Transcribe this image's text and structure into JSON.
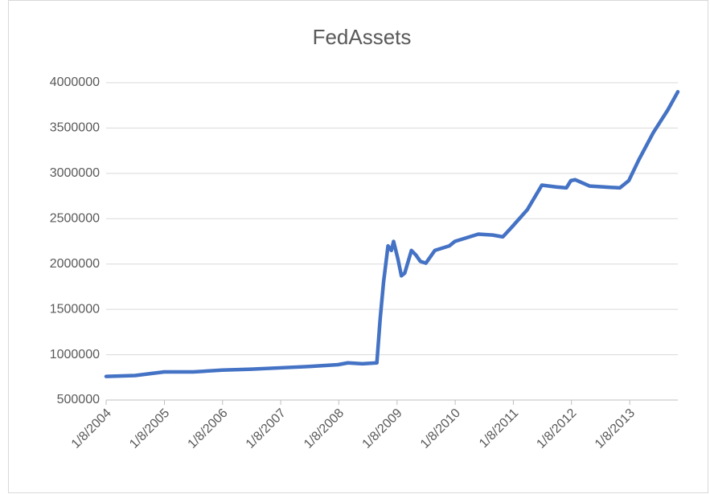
{
  "chart_data": {
    "type": "line",
    "title": "FedAssets",
    "series": [
      {
        "name": "FedAssets",
        "color": "#4472c4",
        "x": [
          "2004-01-08",
          "2004-07-08",
          "2005-01-06",
          "2005-07-07",
          "2006-01-05",
          "2006-07-06",
          "2007-01-04",
          "2007-07-05",
          "2008-01-03",
          "2008-03-05",
          "2008-06-04",
          "2008-09-03",
          "2008-09-24",
          "2008-10-15",
          "2008-11-12",
          "2008-12-03",
          "2008-12-17",
          "2009-01-14",
          "2009-02-04",
          "2009-02-25",
          "2009-04-08",
          "2009-05-06",
          "2009-06-03",
          "2009-07-08",
          "2009-09-02",
          "2009-12-02",
          "2010-01-06",
          "2010-06-02",
          "2010-09-01",
          "2010-11-03",
          "2011-01-05",
          "2011-04-06",
          "2011-07-06",
          "2011-10-05",
          "2011-12-07",
          "2012-01-04",
          "2012-02-01",
          "2012-05-02",
          "2012-08-01",
          "2012-11-07",
          "2013-01-02",
          "2013-03-06",
          "2013-06-05",
          "2013-09-04",
          "2013-11-06"
        ],
        "values": [
          760000,
          770000,
          810000,
          810000,
          830000,
          840000,
          855000,
          870000,
          890000,
          910000,
          900000,
          910000,
          1400000,
          1800000,
          2200000,
          2150000,
          2250000,
          2050000,
          1870000,
          1900000,
          2150000,
          2100000,
          2030000,
          2010000,
          2150000,
          2200000,
          2250000,
          2330000,
          2320000,
          2300000,
          2420000,
          2600000,
          2870000,
          2850000,
          2840000,
          2920000,
          2930000,
          2860000,
          2850000,
          2840000,
          2920000,
          3150000,
          3450000,
          3700000,
          3900000
        ]
      }
    ],
    "xlim": [
      "2004-01-08",
      "2013-11-06"
    ],
    "xticks": [
      {
        "value": "2004-01-08",
        "label": "1/8/2004"
      },
      {
        "value": "2005-01-08",
        "label": "1/8/2005"
      },
      {
        "value": "2006-01-08",
        "label": "1/8/2006"
      },
      {
        "value": "2007-01-08",
        "label": "1/8/2007"
      },
      {
        "value": "2008-01-08",
        "label": "1/8/2008"
      },
      {
        "value": "2009-01-08",
        "label": "1/8/2009"
      },
      {
        "value": "2010-01-08",
        "label": "1/8/2010"
      },
      {
        "value": "2011-01-08",
        "label": "1/8/2011"
      },
      {
        "value": "2012-01-08",
        "label": "1/8/2012"
      },
      {
        "value": "2013-01-08",
        "label": "1/8/2013"
      }
    ],
    "ylim": [
      500000,
      4000000
    ],
    "yticks": [
      500000,
      1000000,
      1500000,
      2000000,
      2500000,
      3000000,
      3500000,
      4000000
    ],
    "grid": true
  }
}
